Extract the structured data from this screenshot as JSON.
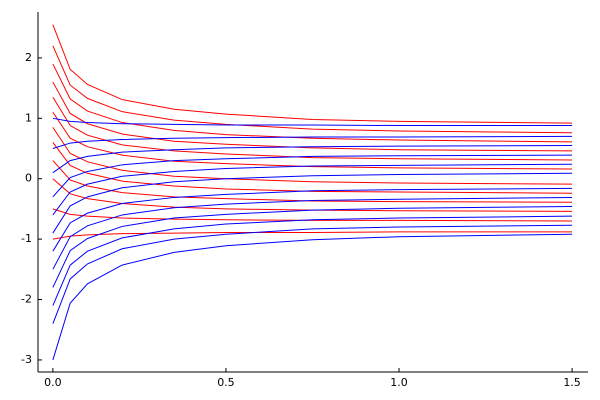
{
  "chart_data": {
    "type": "line",
    "x": [
      0,
      0.05,
      0.1,
      0.2,
      0.35,
      0.5,
      0.75,
      1.0,
      1.5
    ],
    "xlim": [
      -0.043,
      1.546
    ],
    "ylim": [
      -3.2,
      2.76
    ],
    "xticks": [
      {
        "value": 0,
        "label": "0.0"
      },
      {
        "value": 0.5,
        "label": "0.5"
      },
      {
        "value": 1.0,
        "label": "1.0"
      },
      {
        "value": 1.5,
        "label": "1.5"
      }
    ],
    "yticks": [
      -3,
      -2,
      -1,
      0,
      1,
      2
    ],
    "grid": false,
    "series": [
      {
        "color": "#ff0000",
        "values": [
          2.55,
          1.81,
          1.56,
          1.31,
          1.15,
          1.07,
          0.98,
          0.95,
          0.92
        ]
      },
      {
        "color": "#ff0000",
        "values": [
          2.2,
          1.55,
          1.33,
          1.11,
          0.97,
          0.9,
          0.82,
          0.79,
          0.76
        ]
      },
      {
        "color": "#ff0000",
        "values": [
          1.9,
          1.32,
          1.12,
          0.93,
          0.8,
          0.73,
          0.67,
          0.64,
          0.61
        ]
      },
      {
        "color": "#ff0000",
        "values": [
          1.6,
          1.08,
          0.91,
          0.74,
          0.62,
          0.57,
          0.51,
          0.48,
          0.46
        ]
      },
      {
        "color": "#ff0000",
        "values": [
          1.35,
          0.88,
          0.72,
          0.56,
          0.46,
          0.41,
          0.35,
          0.33,
          0.31
        ]
      },
      {
        "color": "#ff0000",
        "values": [
          1.1,
          0.67,
          0.53,
          0.39,
          0.29,
          0.25,
          0.2,
          0.18,
          0.16
        ]
      },
      {
        "color": "#ff0000",
        "values": [
          0.85,
          0.42,
          0.28,
          0.14,
          0.04,
          0.0,
          -0.05,
          -0.07,
          -0.09
        ]
      },
      {
        "color": "#ff0000",
        "values": [
          0.6,
          0.22,
          0.09,
          -0.04,
          -0.12,
          -0.17,
          -0.21,
          -0.22,
          -0.24
        ]
      },
      {
        "color": "#ff0000",
        "values": [
          0.3,
          -0.02,
          -0.12,
          -0.23,
          -0.3,
          -0.33,
          -0.37,
          -0.38,
          -0.39
        ]
      },
      {
        "color": "#ff0000",
        "values": [
          0.0,
          -0.25,
          -0.33,
          -0.41,
          -0.47,
          -0.5,
          -0.52,
          -0.53,
          -0.54
        ]
      },
      {
        "color": "#ff0000",
        "values": [
          -0.5,
          -0.59,
          -0.62,
          -0.65,
          -0.67,
          -0.68,
          -0.69,
          -0.69,
          -0.7
        ]
      },
      {
        "color": "#ff0000",
        "values": [
          -1.0,
          -0.95,
          -0.93,
          -0.91,
          -0.9,
          -0.89,
          -0.89,
          -0.88,
          -0.88
        ]
      },
      {
        "color": "#0000ff",
        "values": [
          -3.0,
          -2.06,
          -1.74,
          -1.43,
          -1.22,
          -1.11,
          -1.01,
          -0.96,
          -0.92
        ]
      },
      {
        "color": "#0000ff",
        "values": [
          -2.4,
          -1.66,
          -1.41,
          -1.16,
          -1.0,
          -0.92,
          -0.83,
          -0.8,
          -0.77
        ]
      },
      {
        "color": "#0000ff",
        "values": [
          -2.1,
          -1.43,
          -1.2,
          -0.98,
          -0.83,
          -0.75,
          -0.68,
          -0.65,
          -0.62
        ]
      },
      {
        "color": "#0000ff",
        "values": [
          -1.8,
          -1.19,
          -0.99,
          -0.79,
          -0.65,
          -0.59,
          -0.52,
          -0.49,
          -0.46
        ]
      },
      {
        "color": "#0000ff",
        "values": [
          -1.5,
          -0.96,
          -0.78,
          -0.6,
          -0.48,
          -0.42,
          -0.36,
          -0.34,
          -0.31
        ]
      },
      {
        "color": "#0000ff",
        "values": [
          -1.2,
          -0.73,
          -0.57,
          -0.41,
          -0.31,
          -0.26,
          -0.2,
          -0.18,
          -0.16
        ]
      },
      {
        "color": "#0000ff",
        "values": [
          -0.9,
          -0.45,
          -0.3,
          -0.15,
          -0.05,
          0.0,
          0.05,
          0.07,
          0.09
        ]
      },
      {
        "color": "#0000ff",
        "values": [
          -0.6,
          -0.22,
          -0.09,
          0.04,
          0.12,
          0.17,
          0.21,
          0.22,
          0.24
        ]
      },
      {
        "color": "#0000ff",
        "values": [
          -0.3,
          0.02,
          0.12,
          0.23,
          0.3,
          0.33,
          0.37,
          0.38,
          0.39
        ]
      },
      {
        "color": "#0000ff",
        "values": [
          0.1,
          0.3,
          0.37,
          0.44,
          0.48,
          0.51,
          0.53,
          0.54,
          0.55
        ]
      },
      {
        "color": "#0000ff",
        "values": [
          0.5,
          0.59,
          0.62,
          0.65,
          0.67,
          0.68,
          0.69,
          0.69,
          0.7
        ]
      },
      {
        "color": "#0000ff",
        "values": [
          1.0,
          0.95,
          0.93,
          0.91,
          0.9,
          0.89,
          0.89,
          0.88,
          0.88
        ]
      }
    ]
  }
}
